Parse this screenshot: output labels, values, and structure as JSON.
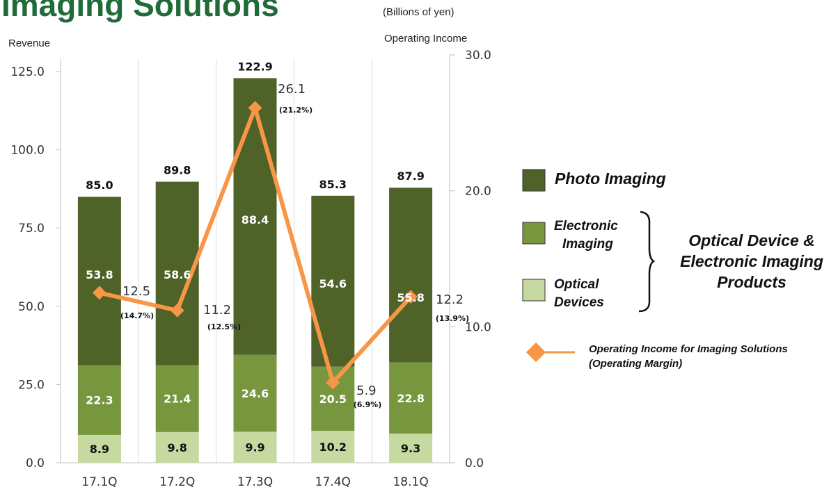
{
  "page": {
    "title": "Imaging Solutions",
    "unit_note": "(Billions of yen)"
  },
  "chart_data": {
    "type": "bar",
    "stacked": true,
    "categories": [
      "17.1Q",
      "17.2Q",
      "17.3Q",
      "17.4Q",
      "18.1Q"
    ],
    "y_left_label": "Revenue",
    "y_right_label": "Operating Income",
    "y_left_ticks": [
      "0.0",
      "25.0",
      "50.0",
      "75.0",
      "100.0",
      "125.0"
    ],
    "y_right_ticks": [
      "0.0",
      "10.0",
      "20.0",
      "30.0"
    ],
    "y_left_range": [
      0,
      125
    ],
    "y_right_range": [
      0,
      30
    ],
    "grid": "vertical lines between categories",
    "series": [
      {
        "name": "Optical Devices",
        "color": "#c5d9a1",
        "values": [
          8.9,
          9.8,
          9.9,
          10.2,
          9.3
        ],
        "labels": [
          "8.9",
          "9.8",
          "9.9",
          "10.2",
          "9.3"
        ]
      },
      {
        "name": "Electronic Imaging",
        "color": "#77963e",
        "values": [
          22.3,
          21.4,
          24.6,
          20.5,
          22.8
        ],
        "labels": [
          "22.3",
          "21.4",
          "24.6",
          "20.5",
          "22.8"
        ]
      },
      {
        "name": "Photo Imaging",
        "color": "#4f6228",
        "values": [
          53.8,
          58.6,
          88.4,
          54.6,
          55.8
        ],
        "labels": [
          "53.8",
          "58.6",
          "88.4",
          "54.6",
          "55.8"
        ]
      }
    ],
    "totals": [
      85.0,
      89.8,
      122.9,
      85.3,
      87.9
    ],
    "total_labels": [
      "85.0",
      "89.8",
      "122.9",
      "85.3",
      "87.9"
    ],
    "line": {
      "name": "Operating Income for Imaging Solutions (Operating Margin)",
      "color": "#f79646",
      "axis": "right",
      "values": [
        12.5,
        11.2,
        26.1,
        5.9,
        12.2
      ],
      "value_labels": [
        "12.5",
        "11.2",
        "26.1",
        "5.9",
        "12.2"
      ],
      "margin_labels": [
        "(14.7%)",
        "(12.5%)",
        "(21.2%)",
        "(6.9%)",
        "(13.9%)"
      ]
    }
  },
  "legend": {
    "photo": "Photo Imaging",
    "electronic_line1": "Electronic",
    "electronic_line2": "Imaging",
    "optical_line1": "Optical",
    "optical_line2": "Devices",
    "group_line1": "Optical Device &",
    "group_line2": "Electronic Imaging",
    "group_line3": "Products",
    "oi_line1": "Operating Income for Imaging Solutions",
    "oi_line2": "(Operating Margin)"
  }
}
